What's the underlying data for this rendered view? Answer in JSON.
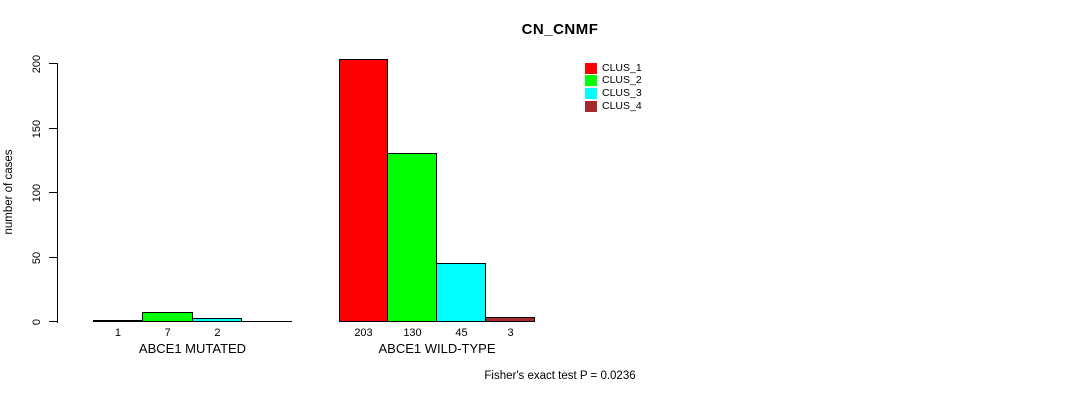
{
  "page": {
    "background": "#ffffff"
  },
  "chart_data": {
    "type": "bar",
    "title": "CN_CNMF",
    "ylabel": "number of cases",
    "xlabel": "",
    "ylim": [
      0,
      200
    ],
    "yticks": [
      0,
      50,
      100,
      150,
      200
    ],
    "grid": false,
    "legend_position": "top-right",
    "axis_color": "#000000",
    "bar_border_color": "#000000",
    "series": [
      {
        "name": "CLUS_1",
        "color": "#FF0000"
      },
      {
        "name": "CLUS_2",
        "color": "#00FF00"
      },
      {
        "name": "CLUS_3",
        "color": "#00FFFF"
      },
      {
        "name": "CLUS_4",
        "color": "#A52A2A"
      }
    ],
    "categories": [
      "ABCE1 MUTATED",
      "ABCE1 WILD-TYPE"
    ],
    "groups": [
      {
        "label": "ABCE1 MUTATED",
        "values": [
          1,
          7,
          2,
          0
        ],
        "value_labels": [
          "1",
          "7",
          "2",
          ""
        ]
      },
      {
        "label": "ABCE1 WILD-TYPE",
        "values": [
          203,
          130,
          45,
          3
        ],
        "value_labels": [
          "203",
          "130",
          "45",
          "3"
        ]
      }
    ],
    "footer": "Fisher's exact test P = 0.0236"
  }
}
